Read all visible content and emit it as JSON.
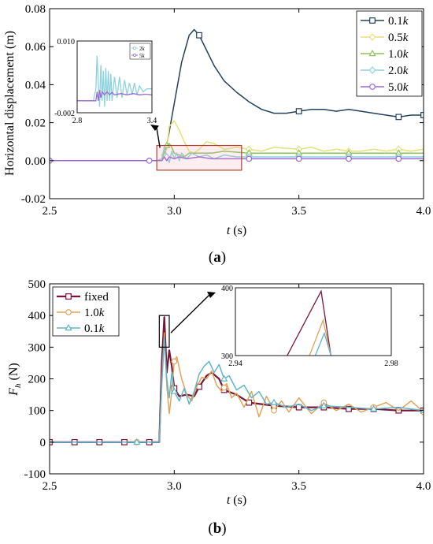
{
  "panels": [
    {
      "label": "(a)",
      "label_parts": [
        "(",
        "a",
        ")"
      ],
      "chart_data": {
        "type": "line",
        "xlabel": "t (s)",
        "ylabel": "Horizontal displacement (m)",
        "xlim": [
          2.5,
          4.0
        ],
        "ylim": [
          -0.02,
          0.08
        ],
        "xticks": [
          2.5,
          3.0,
          3.5,
          4.0
        ],
        "xtick_labels": [
          "2.5",
          "3.0",
          "3.5",
          "4.0"
        ],
        "yticks": [
          -0.02,
          0.0,
          0.02,
          0.04,
          0.06,
          0.08
        ],
        "ytick_labels": [
          "-0.02",
          "0.00",
          "0.02",
          "0.04",
          "0.06",
          "0.08"
        ],
        "legend_position": "top-right",
        "series": [
          {
            "name": "0.1k",
            "color": "#23405e",
            "marker": "square",
            "marker_x": [
              3.1,
              3.5,
              3.9,
              4.0
            ],
            "x": [
              2.5,
              2.93,
              2.95,
              2.97,
              3.0,
              3.03,
              3.06,
              3.08,
              3.1,
              3.13,
              3.16,
              3.2,
              3.25,
              3.3,
              3.35,
              3.4,
              3.45,
              3.5,
              3.55,
              3.6,
              3.65,
              3.7,
              3.75,
              3.8,
              3.85,
              3.9,
              3.95,
              4.0
            ],
            "y": [
              0.0,
              0.0,
              0.0,
              0.008,
              0.03,
              0.052,
              0.066,
              0.069,
              0.066,
              0.058,
              0.05,
              0.042,
              0.036,
              0.031,
              0.027,
              0.025,
              0.025,
              0.026,
              0.027,
              0.027,
              0.026,
              0.027,
              0.026,
              0.025,
              0.024,
              0.023,
              0.024,
              0.024
            ]
          },
          {
            "name": "0.5k",
            "color": "#e6e07a",
            "marker": "diamond",
            "marker_x": [
              2.96,
              3.3,
              3.5,
              3.7,
              3.9
            ],
            "x": [
              2.5,
              2.93,
              2.95,
              2.97,
              2.98,
              3.0,
              3.02,
              3.04,
              3.06,
              3.08,
              3.1,
              3.13,
              3.16,
              3.2,
              3.25,
              3.3,
              3.35,
              3.4,
              3.5,
              3.55,
              3.6,
              3.65,
              3.7,
              3.75,
              3.8,
              3.85,
              3.9,
              3.95,
              4.0
            ],
            "y": [
              0.0,
              0.0,
              0.0,
              0.006,
              0.018,
              0.021,
              0.016,
              0.01,
              0.005,
              0.004,
              0.006,
              0.01,
              0.009,
              0.006,
              0.007,
              0.006,
              0.005,
              0.007,
              0.006,
              0.007,
              0.005,
              0.006,
              0.005,
              0.005,
              0.006,
              0.005,
              0.006,
              0.005,
              0.006
            ]
          },
          {
            "name": "1.0k",
            "color": "#8fc35a",
            "marker": "triangle",
            "marker_x": [
              2.97,
              3.3,
              3.5,
              3.7,
              3.9
            ],
            "x": [
              2.5,
              2.93,
              2.95,
              2.96,
              2.97,
              2.98,
              2.99,
              3.0,
              3.02,
              3.04,
              3.06,
              3.1,
              3.15,
              3.2,
              3.3,
              3.4,
              3.5,
              3.6,
              3.7,
              3.8,
              3.9,
              4.0
            ],
            "y": [
              0.0,
              0.0,
              0.001,
              0.004,
              0.008,
              0.009,
              0.007,
              0.004,
              0.003,
              0.002,
              0.004,
              0.004,
              0.004,
              0.005,
              0.004,
              0.004,
              0.004,
              0.004,
              0.004,
              0.004,
              0.004,
              0.004
            ]
          },
          {
            "name": "2.0k",
            "color": "#8cd2de",
            "marker": "diamond",
            "marker_x": [
              2.97,
              3.3,
              3.5,
              3.7,
              3.9
            ],
            "x": [
              2.5,
              2.93,
              2.95,
              2.96,
              2.97,
              2.98,
              2.99,
              3.0,
              3.01,
              3.02,
              3.03,
              3.05,
              3.07,
              3.1,
              3.13,
              3.16,
              3.2,
              3.25,
              3.3,
              3.4,
              3.5,
              3.6,
              3.7,
              3.8,
              3.9,
              4.0
            ],
            "y": [
              0.0,
              0.0,
              0.001,
              0.007,
              0.002,
              -0.001,
              0.005,
              0.001,
              0.004,
              0.0,
              0.004,
              0.001,
              0.004,
              0.002,
              0.003,
              0.001,
              0.003,
              0.002,
              0.002,
              0.002,
              0.002,
              0.002,
              0.002,
              0.002,
              0.002,
              0.002
            ]
          },
          {
            "name": "5.0k",
            "color": "#9a6ad6",
            "marker": "circle",
            "marker_x": [
              2.5,
              2.9,
              3.3,
              3.5,
              3.7,
              3.9
            ],
            "x": [
              2.5,
              2.93,
              2.95,
              2.96,
              2.97,
              2.98,
              3.0,
              3.02,
              3.05,
              3.1,
              3.15,
              3.2,
              3.3,
              3.4,
              3.5,
              3.6,
              3.7,
              3.8,
              3.9,
              4.0
            ],
            "y": [
              0.0,
              0.0,
              0.0,
              0.002,
              0.0,
              0.002,
              0.001,
              0.002,
              0.001,
              0.002,
              0.001,
              0.001,
              0.001,
              0.001,
              0.001,
              0.001,
              0.001,
              0.001,
              0.001,
              0.001
            ]
          }
        ],
        "highlight_box": {
          "x": [
            2.93,
            3.27
          ],
          "y": [
            -0.005,
            0.008
          ]
        },
        "inset": {
          "xlim": [
            2.8,
            3.4
          ],
          "ylim": [
            -0.002,
            0.01
          ],
          "xtick_labels": [
            "2.8",
            "3.4"
          ],
          "ytick_labels": [
            "0.010",
            "-0.002"
          ],
          "legend": [
            "2k",
            "5k"
          ],
          "series": [
            {
              "name": "2k",
              "color": "#8cd2de",
              "x": [
                2.8,
                2.93,
                2.95,
                2.96,
                2.97,
                2.98,
                2.99,
                3.0,
                3.01,
                3.02,
                3.03,
                3.04,
                3.05,
                3.06,
                3.07,
                3.08,
                3.1,
                3.12,
                3.14,
                3.16,
                3.18,
                3.2,
                3.22,
                3.24,
                3.26,
                3.28,
                3.3,
                3.33,
                3.36,
                3.4
              ],
              "y": [
                0.0,
                0.0,
                0.002,
                0.0075,
                0.003,
                -0.001,
                0.006,
                0.0,
                0.005,
                -0.001,
                0.0055,
                0.0,
                0.005,
                0.0,
                0.0045,
                0.0,
                0.004,
                0.0005,
                0.004,
                0.0005,
                0.0035,
                0.001,
                0.003,
                0.001,
                0.003,
                0.001,
                0.0025,
                0.0015,
                0.002,
                0.002
              ]
            },
            {
              "name": "5k",
              "color": "#9a6ad6",
              "x": [
                2.8,
                2.93,
                2.95,
                2.96,
                2.97,
                2.98,
                2.99,
                3.0,
                3.02,
                3.04,
                3.06,
                3.08,
                3.1,
                3.15,
                3.2,
                3.25,
                3.3,
                3.35,
                3.4
              ],
              "y": [
                0.0,
                0.0,
                0.0,
                0.0015,
                0.0,
                0.0018,
                0.0005,
                0.0015,
                0.001,
                0.0015,
                0.001,
                0.0014,
                0.001,
                0.0012,
                0.001,
                0.0012,
                0.001,
                0.0011,
                0.001
              ]
            }
          ]
        }
      }
    },
    {
      "label": "(b)",
      "label_parts": [
        "(",
        "b",
        ")"
      ],
      "chart_data": {
        "type": "line",
        "xlabel": "t (s)",
        "ylabel": "Fh (N)",
        "xlim": [
          2.5,
          4.0
        ],
        "ylim": [
          -100,
          500
        ],
        "xticks": [
          2.5,
          3.0,
          3.5,
          4.0
        ],
        "xtick_labels": [
          "2.5",
          "3.0",
          "3.5",
          "4.0"
        ],
        "yticks": [
          -100,
          0,
          100,
          200,
          300,
          400,
          500
        ],
        "ytick_labels": [
          "-100",
          "0",
          "100",
          "200",
          "300",
          "400",
          "500"
        ],
        "legend_position": "top-left",
        "series": [
          {
            "name": "fixed",
            "color": "#7a1535",
            "marker": "square",
            "marker_x": [
              2.5,
              2.6,
              2.7,
              2.8,
              2.9,
              3.0,
              3.1,
              3.2,
              3.3,
              3.4,
              3.5,
              3.6,
              3.7,
              3.8,
              3.9,
              4.0
            ],
            "x": [
              2.5,
              2.9,
              2.94,
              2.95,
              2.96,
              2.97,
              2.98,
              2.99,
              3.0,
              3.02,
              3.05,
              3.08,
              3.1,
              3.13,
              3.15,
              3.18,
              3.2,
              3.25,
              3.3,
              3.35,
              3.4,
              3.5,
              3.6,
              3.7,
              3.8,
              3.9,
              4.0
            ],
            "y": [
              0,
              0,
              0,
              250,
              395,
              220,
              290,
              240,
              170,
              145,
              150,
              145,
              175,
              210,
              220,
              200,
              165,
              150,
              125,
              120,
              115,
              110,
              110,
              105,
              105,
              100,
              100
            ]
          },
          {
            "name": "1.0k",
            "color": "#e0a35c",
            "marker": "circle",
            "marker_x": [
              2.85,
              3.0,
              3.2,
              3.4,
              3.6,
              3.8,
              4.0
            ],
            "x": [
              2.5,
              2.9,
              2.94,
              2.95,
              2.96,
              2.97,
              2.98,
              2.99,
              3.0,
              3.01,
              3.03,
              3.05,
              3.07,
              3.09,
              3.11,
              3.13,
              3.15,
              3.17,
              3.19,
              3.21,
              3.23,
              3.25,
              3.28,
              3.31,
              3.34,
              3.37,
              3.4,
              3.43,
              3.46,
              3.5,
              3.55,
              3.6,
              3.65,
              3.7,
              3.75,
              3.8,
              3.85,
              3.9,
              3.95,
              4.0
            ],
            "y": [
              0,
              0,
              0,
              200,
              345,
              180,
              90,
              160,
              255,
              270,
              200,
              150,
              130,
              175,
              205,
              200,
              225,
              180,
              160,
              185,
              140,
              155,
              110,
              160,
              80,
              145,
              100,
              130,
              95,
              140,
              90,
              125,
              100,
              120,
              95,
              110,
              125,
              100,
              130,
              95
            ]
          },
          {
            "name": "0.1k",
            "color": "#5fb5c8",
            "marker": "triangle",
            "marker_x": [
              2.85,
              3.0,
              3.2,
              3.4,
              3.6,
              3.8,
              4.0
            ],
            "x": [
              2.5,
              2.9,
              2.94,
              2.95,
              2.96,
              2.97,
              2.98,
              2.99,
              3.0,
              3.02,
              3.04,
              3.06,
              3.08,
              3.1,
              3.12,
              3.14,
              3.16,
              3.18,
              3.2,
              3.22,
              3.25,
              3.28,
              3.31,
              3.34,
              3.37,
              3.4,
              3.45,
              3.5,
              3.55,
              3.6,
              3.7,
              3.8,
              3.9,
              4.0
            ],
            "y": [
              0,
              0,
              0,
              180,
              330,
              200,
              140,
              220,
              160,
              130,
              170,
              120,
              160,
              215,
              240,
              255,
              220,
              245,
              200,
              210,
              165,
              180,
              140,
              160,
              120,
              125,
              110,
              120,
              100,
              115,
              110,
              105,
              110,
              100
            ]
          }
        ],
        "highlight_box": {
          "x": [
            2.94,
            2.98
          ],
          "y": [
            300,
            400
          ]
        },
        "inset": {
          "xlim": [
            2.94,
            2.98
          ],
          "ylim": [
            300,
            400
          ],
          "xtick_labels": [
            "2.94",
            "2.98"
          ],
          "ytick_labels": [
            "400",
            "300"
          ],
          "series": [
            {
              "name": "fixed",
              "color": "#7a1535",
              "x": [
                2.9533,
                2.962,
                2.9645
              ],
              "y": [
                300,
                395,
                300
              ]
            },
            {
              "name": "1.0k",
              "color": "#e0a35c",
              "x": [
                2.959,
                2.9625,
                2.9645
              ],
              "y": [
                300,
                352,
                300
              ]
            },
            {
              "name": "0.1k",
              "color": "#5fb5c8",
              "x": [
                2.9605,
                2.9628,
                2.9645
              ],
              "y": [
                300,
                333,
                300
              ]
            }
          ]
        }
      }
    }
  ]
}
